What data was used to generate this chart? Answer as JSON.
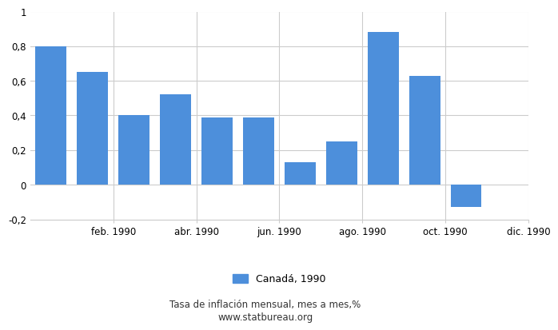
{
  "values": [
    0.8,
    0.65,
    0.4,
    0.52,
    0.39,
    0.39,
    0.13,
    0.25,
    0.88,
    0.63,
    -0.13,
    0.0
  ],
  "xtick_labels": [
    "feb. 1990",
    "abr. 1990",
    "jun. 1990",
    "ago. 1990",
    "oct. 1990",
    "dic. 1990"
  ],
  "xtick_positions": [
    1.5,
    3.5,
    5.5,
    7.5,
    9.5,
    11.5
  ],
  "bar_color": "#4d8fdb",
  "ylim": [
    -0.2,
    1.0
  ],
  "yticks": [
    -0.2,
    0.0,
    0.2,
    0.4,
    0.6,
    0.8,
    1.0
  ],
  "ytick_labels": [
    "-0,2",
    "0",
    "0,2",
    "0,4",
    "0,6",
    "0,8",
    "1"
  ],
  "legend_label": "Canadá, 1990",
  "footer_line1": "Tasa de inflación mensual, mes a mes,%",
  "footer_line2": "www.statbureau.org",
  "background_color": "#ffffff",
  "grid_color": "#cccccc",
  "n_bars": 12
}
